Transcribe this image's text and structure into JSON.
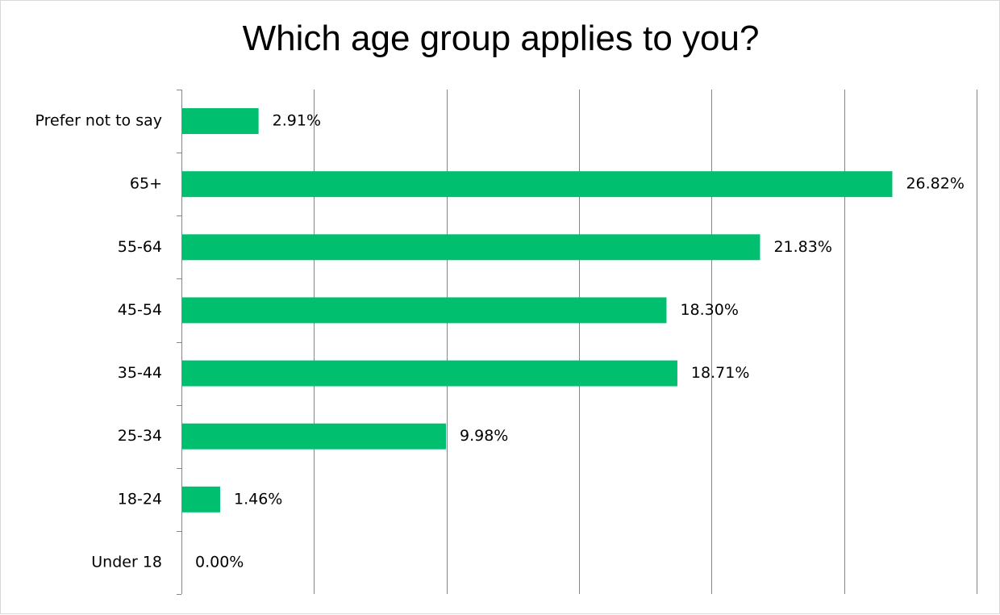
{
  "chart_data": {
    "type": "bar",
    "orientation": "horizontal",
    "title": "Which age group applies to you?",
    "xlabel": "",
    "ylabel": "",
    "categories": [
      "Prefer not to say",
      "65+",
      "55-64",
      "45-54",
      "35-44",
      "25-34",
      "18-24",
      "Under 18"
    ],
    "values": [
      2.91,
      26.82,
      21.83,
      18.3,
      18.71,
      9.98,
      1.46,
      0.0
    ],
    "value_labels": [
      "2.91%",
      "26.82%",
      "21.83%",
      "18.30%",
      "18.71%",
      "9.98%",
      "1.46%",
      "0.00%"
    ],
    "xlim": [
      0,
      30
    ],
    "grid": "vertical",
    "legend": "none",
    "bar_color": "#00BF6F"
  }
}
